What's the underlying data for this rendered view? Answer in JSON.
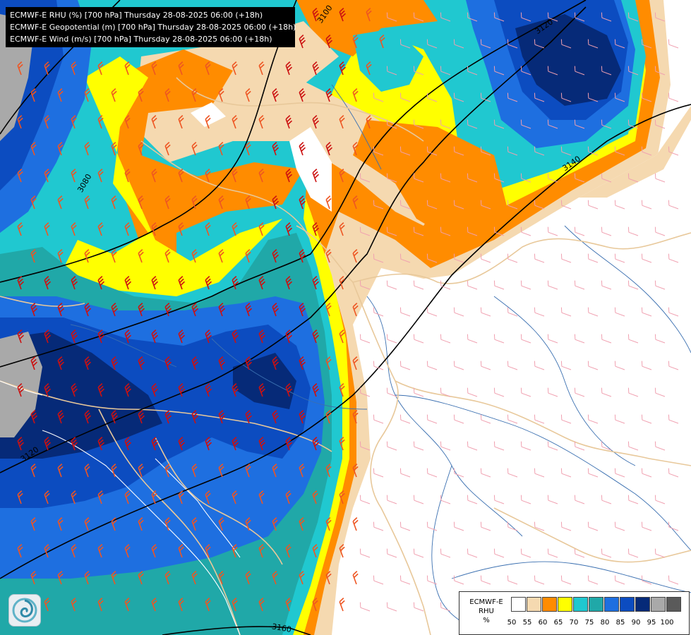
{
  "titles": [
    "ECMWF-E RHU (%) [700 hPa] Thursday 28-08-2025 06:00 (+18h)",
    "ECMWF-E Geopotential (m) [700 hPa] Thursday 28-08-2025 06:00 (+18h)",
    "ECMWF-E Wind (m/s) [700 hPa] Thursday 28-08-2025 06:00 (+18h)"
  ],
  "legend": {
    "name_line1": "ECMWF-E",
    "name_line2": "RHU",
    "unit": "%",
    "colors": [
      "#ffffff",
      "#f5d9b0",
      "#ff8c00",
      "#ffff00",
      "#20c8d0",
      "#20a8a8",
      "#1e6fe0",
      "#0c4cc0",
      "#062a78",
      "#a9a9a9",
      "#5a5a5a"
    ],
    "ticks": [
      "50",
      "55",
      "60",
      "65",
      "70",
      "75",
      "80",
      "85",
      "90",
      "95",
      "100"
    ]
  },
  "contour_labels": [
    "3100",
    "3120",
    "3080",
    "3140",
    "3120",
    "3160"
  ],
  "colors": {
    "rh_50": "#ffffff",
    "rh_55": "#f5d9b0",
    "rh_60": "#ff8c00",
    "rh_65": "#ffff00",
    "rh_70": "#20c8d0",
    "rh_75": "#20a8a8",
    "rh_80": "#1e6fe0",
    "rh_85": "#0c4cc0",
    "rh_90": "#062a78",
    "rh_95": "#a9a9a9",
    "contour": "#000000",
    "border": "#e8c89a",
    "river": "#3a6fb0",
    "wind_strong": "#cc1111",
    "wind_mid": "#ee5522",
    "wind_weak": "#f0a0b0"
  },
  "icons": {
    "logo": "ecmwf-swirl-icon"
  }
}
